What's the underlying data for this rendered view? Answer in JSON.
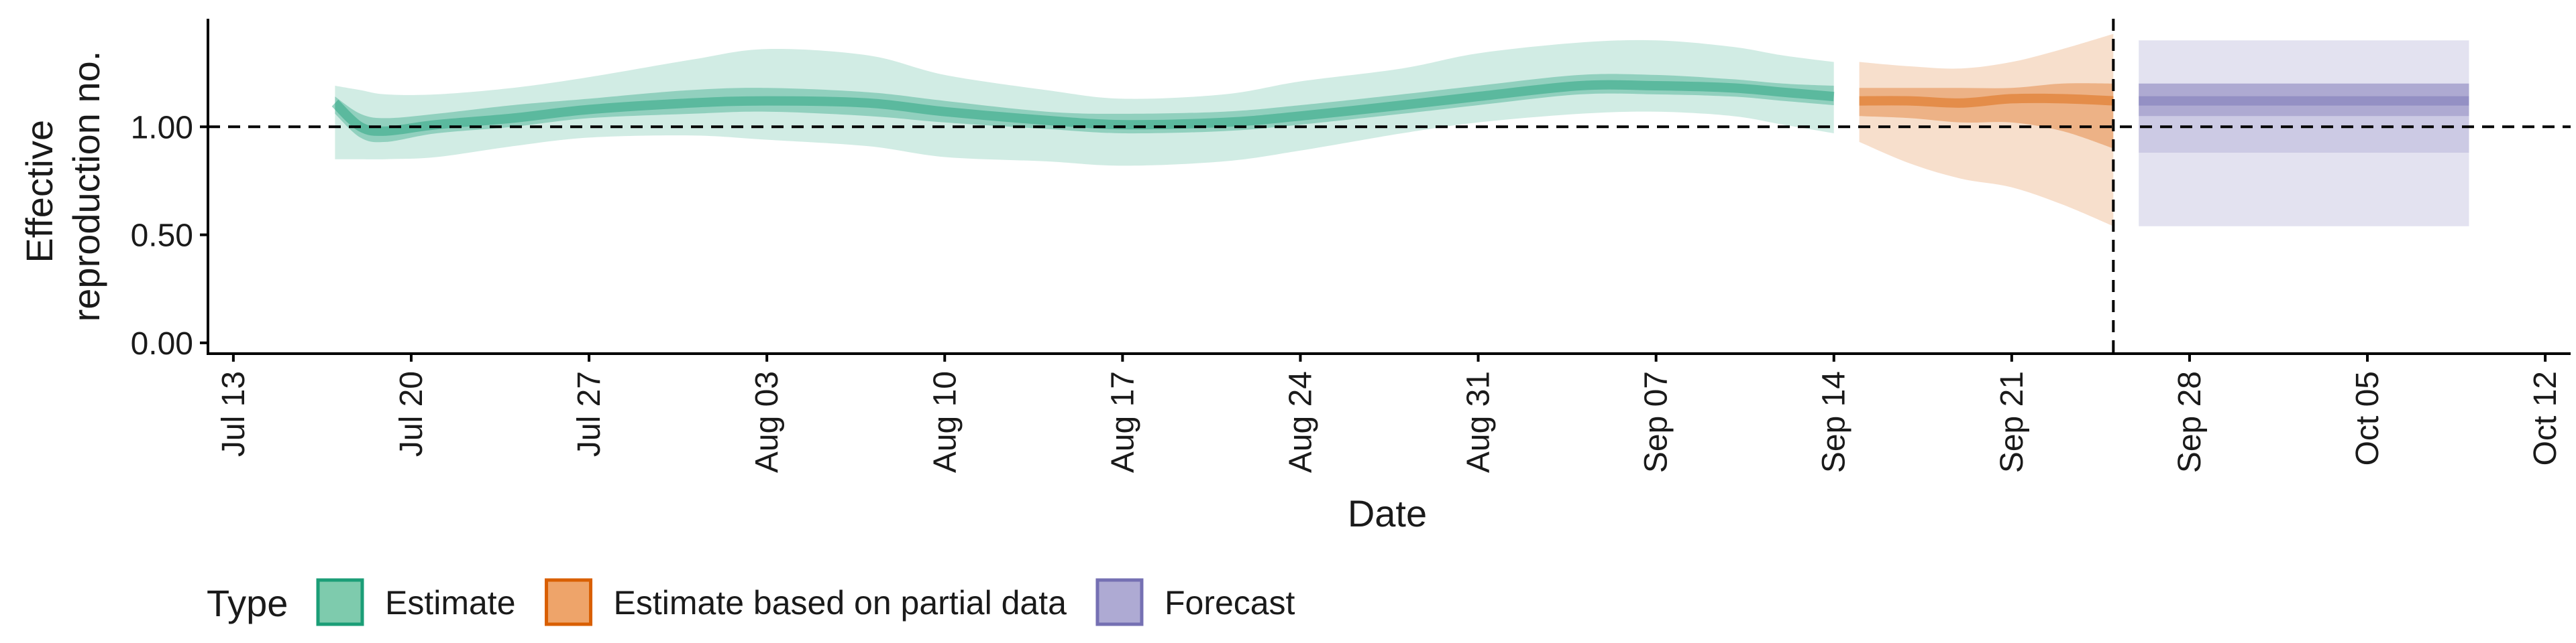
{
  "chart_data": {
    "type": "area",
    "xlabel": "Date",
    "ylabel_lines": [
      "Effective",
      "reproduction no."
    ],
    "x_range": [
      "2020-07-12",
      "2020-10-13"
    ],
    "ylim": [
      -0.05,
      1.5
    ],
    "x_ticks": [
      {
        "date": "2020-07-13",
        "label": "Jul 13"
      },
      {
        "date": "2020-07-20",
        "label": "Jul 20"
      },
      {
        "date": "2020-07-27",
        "label": "Jul 27"
      },
      {
        "date": "2020-08-03",
        "label": "Aug 03"
      },
      {
        "date": "2020-08-10",
        "label": "Aug 10"
      },
      {
        "date": "2020-08-17",
        "label": "Aug 17"
      },
      {
        "date": "2020-08-24",
        "label": "Aug 24"
      },
      {
        "date": "2020-08-31",
        "label": "Aug 31"
      },
      {
        "date": "2020-09-07",
        "label": "Sep 07"
      },
      {
        "date": "2020-09-14",
        "label": "Sep 14"
      },
      {
        "date": "2020-09-21",
        "label": "Sep 21"
      },
      {
        "date": "2020-09-28",
        "label": "Sep 28"
      },
      {
        "date": "2020-10-05",
        "label": "Oct 05"
      },
      {
        "date": "2020-10-12",
        "label": "Oct 12"
      }
    ],
    "y_ticks": [
      {
        "value": 0.0,
        "label": "0.00"
      },
      {
        "value": 0.5,
        "label": "0.50"
      },
      {
        "value": 1.0,
        "label": "1.00"
      }
    ],
    "reference_line": {
      "y": 1.0,
      "style": "dashed"
    },
    "vertical_line": {
      "x": "2020-09-25",
      "style": "dashed"
    },
    "grid": false,
    "legend": {
      "title": "Type",
      "position": "bottom-left",
      "items": [
        {
          "label": "Estimate",
          "fill": "#7ecbad",
          "stroke": "#1b9e77"
        },
        {
          "label": "Estimate based on partial data",
          "fill": "#eea46a",
          "stroke": "#d95f02"
        },
        {
          "label": "Forecast",
          "fill": "#aeaad3",
          "stroke": "#7570b3"
        }
      ]
    },
    "series": [
      {
        "name": "Estimate",
        "color": "#1b9e77",
        "dates": [
          "2020-07-17",
          "2020-07-18",
          "2020-07-19",
          "2020-07-21",
          "2020-07-24",
          "2020-07-27",
          "2020-07-31",
          "2020-08-03",
          "2020-08-07",
          "2020-08-10",
          "2020-08-14",
          "2020-08-17",
          "2020-08-21",
          "2020-08-24",
          "2020-08-28",
          "2020-08-31",
          "2020-09-04",
          "2020-09-07",
          "2020-09-10",
          "2020-09-12",
          "2020-09-14"
        ],
        "median": [
          1.11,
          1.0,
          0.98,
          1.01,
          1.04,
          1.08,
          1.11,
          1.12,
          1.11,
          1.07,
          1.03,
          1.01,
          1.02,
          1.05,
          1.1,
          1.14,
          1.19,
          1.19,
          1.18,
          1.16,
          1.14
        ],
        "lower_50": [
          1.06,
          0.95,
          0.93,
          0.97,
          1.0,
          1.04,
          1.06,
          1.07,
          1.05,
          1.02,
          0.99,
          0.97,
          0.98,
          1.01,
          1.06,
          1.1,
          1.15,
          1.15,
          1.14,
          1.12,
          1.1
        ],
        "upper_50": [
          1.14,
          1.06,
          1.04,
          1.06,
          1.1,
          1.13,
          1.17,
          1.18,
          1.16,
          1.12,
          1.07,
          1.06,
          1.07,
          1.1,
          1.15,
          1.19,
          1.24,
          1.24,
          1.22,
          1.2,
          1.19
        ],
        "lower_90": [
          0.85,
          0.85,
          0.85,
          0.86,
          0.91,
          0.95,
          0.96,
          0.94,
          0.91,
          0.86,
          0.84,
          0.82,
          0.84,
          0.89,
          0.97,
          1.02,
          1.06,
          1.07,
          1.05,
          1.01,
          0.97
        ],
        "upper_90": [
          1.19,
          1.17,
          1.15,
          1.15,
          1.18,
          1.23,
          1.31,
          1.36,
          1.33,
          1.24,
          1.17,
          1.13,
          1.15,
          1.21,
          1.27,
          1.34,
          1.39,
          1.4,
          1.37,
          1.33,
          1.3
        ]
      },
      {
        "name": "Estimate based on partial data",
        "color": "#d95f02",
        "dates": [
          "2020-09-15",
          "2020-09-17",
          "2020-09-19",
          "2020-09-21",
          "2020-09-23",
          "2020-09-25"
        ],
        "median": [
          1.12,
          1.12,
          1.11,
          1.13,
          1.13,
          1.12
        ],
        "lower_50": [
          1.05,
          1.04,
          1.02,
          1.02,
          0.98,
          0.9
        ],
        "upper_50": [
          1.18,
          1.18,
          1.18,
          1.18,
          1.2,
          1.2
        ],
        "lower_90": [
          0.93,
          0.83,
          0.76,
          0.72,
          0.64,
          0.54
        ],
        "upper_90": [
          1.3,
          1.28,
          1.27,
          1.3,
          1.36,
          1.43
        ]
      },
      {
        "name": "Forecast",
        "color": "#7570b3",
        "dates": [
          "2020-09-26",
          "2020-10-09"
        ],
        "median": [
          1.12,
          1.12
        ],
        "lower_50": [
          1.05,
          1.05
        ],
        "upper_50": [
          1.2,
          1.2
        ],
        "lower_90": [
          0.88,
          0.88
        ],
        "upper_90": [
          1.2,
          1.2
        ],
        "lower_outer": [
          0.54,
          0.54
        ],
        "upper_outer": [
          1.4,
          1.4
        ]
      }
    ]
  }
}
